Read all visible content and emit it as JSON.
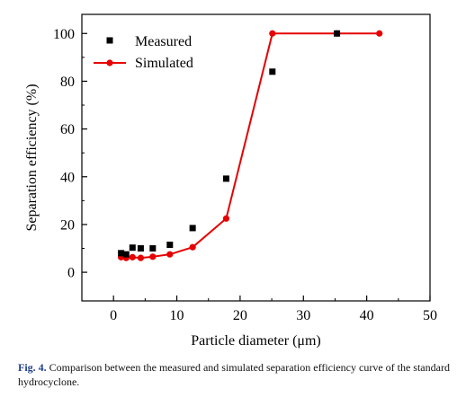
{
  "chart_data": {
    "type": "line",
    "title": "",
    "xlabel": "Particle diameter (μm)",
    "ylabel": "Separation efficiency (%)",
    "xlim": [
      -5,
      50
    ],
    "ylim": [
      -12,
      108
    ],
    "x_ticks": [
      0,
      10,
      20,
      30,
      40,
      50
    ],
    "y_ticks": [
      0,
      20,
      40,
      60,
      80,
      100
    ],
    "grid": false,
    "legend_position": "top-left",
    "series": [
      {
        "name": "Measured",
        "style": "scatter",
        "marker": "square",
        "color": "#000000",
        "x": [
          1.2,
          2.0,
          3.0,
          4.3,
          6.2,
          8.9,
          12.5,
          17.8,
          25.1,
          35.3
        ],
        "y": [
          8.0,
          7.5,
          10.3,
          10.0,
          10.0,
          11.5,
          18.5,
          39.2,
          84.0,
          100.0
        ]
      },
      {
        "name": "Simulated",
        "style": "line-marker",
        "marker": "circle",
        "color": "#e60000",
        "x": [
          1.2,
          2.0,
          3.0,
          4.3,
          6.2,
          8.9,
          12.5,
          17.8,
          25.1,
          35.3,
          42.0
        ],
        "y": [
          6.3,
          6.0,
          6.3,
          6.0,
          6.5,
          7.5,
          10.5,
          22.5,
          100.0,
          100.0,
          100.0
        ]
      }
    ]
  },
  "caption": {
    "label": "Fig. 4.",
    "text": "Comparison between the measured and simulated separation efficiency curve of the standard hydrocyclone."
  }
}
